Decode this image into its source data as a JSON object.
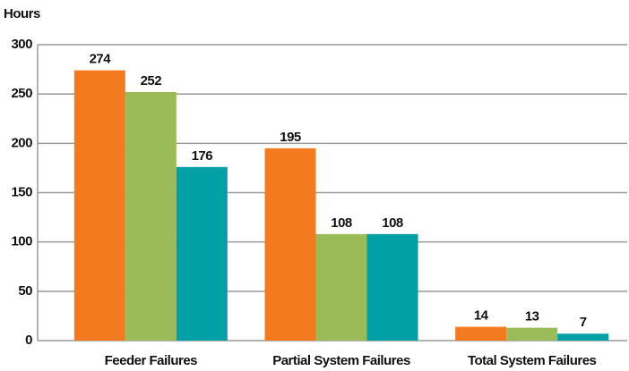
{
  "chart_data": {
    "type": "bar",
    "y_label": "Hours",
    "categories": [
      "Feeder Failures",
      "Partial System Failures",
      "Total System Failures"
    ],
    "series": [
      {
        "color": "#f47a20",
        "values": [
          274,
          195,
          14
        ]
      },
      {
        "color": "#9bbb59",
        "values": [
          252,
          108,
          13
        ]
      },
      {
        "color": "#00a0a6",
        "values": [
          176,
          108,
          7
        ]
      }
    ],
    "ylim": [
      0,
      300
    ],
    "yticks": [
      0,
      50,
      100,
      150,
      200,
      250,
      300
    ],
    "grid": true
  }
}
